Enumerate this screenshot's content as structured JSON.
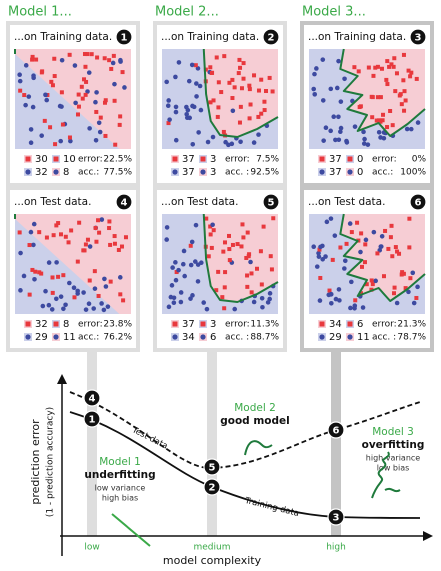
{
  "models": [
    {
      "title": "Model 1...",
      "panels": [
        {
          "title": "...on Training data.",
          "badge": 1,
          "counts": [
            [
              30,
              10
            ],
            [
              32,
              8
            ]
          ],
          "error_label": "error:",
          "error": "22.5%",
          "acc_label": "acc.:",
          "acc": "77.5%"
        },
        {
          "title": "...on Test data.",
          "badge": 4,
          "counts": [
            [
              32,
              8
            ],
            [
              29,
              11
            ]
          ],
          "error_label": "error:",
          "error": "23.8%",
          "acc_label": "acc.:",
          "acc": "76.2%"
        }
      ]
    },
    {
      "title": "Model 2...",
      "panels": [
        {
          "title": "...on Training data.",
          "badge": 2,
          "counts": [
            [
              37,
              3
            ],
            [
              37,
              3
            ]
          ],
          "error_label": "error:",
          "error": "7.5%",
          "acc_label": "acc. :",
          "acc": "92.5%"
        },
        {
          "title": "...on Test data.",
          "badge": 5,
          "counts": [
            [
              37,
              3
            ],
            [
              34,
              6
            ]
          ],
          "error_label": "error:",
          "error": "11.3%",
          "acc_label": "acc. :",
          "acc": "88.7%"
        }
      ]
    },
    {
      "title": "Model 3...",
      "panels": [
        {
          "title": "...on Training data.",
          "badge": 3,
          "counts": [
            [
              37,
              0
            ],
            [
              37,
              0
            ]
          ],
          "error_label": "error:",
          "error": "0%",
          "acc_label": "acc.:",
          "acc": "100%"
        },
        {
          "title": "...on Test data.",
          "badge": 6,
          "counts": [
            [
              34,
              6
            ],
            [
              29,
              11
            ]
          ],
          "error_label": "error:",
          "error": "21.3%",
          "acc_label": "acc. :",
          "acc": "78.7%"
        }
      ]
    }
  ],
  "diagram": {
    "y_label": "prediction error",
    "y_sublabel": "(1 - prediction accuracy)",
    "x_label": "model complexity",
    "ticks": [
      "low",
      "medium",
      "high"
    ],
    "test_label": "Test data",
    "train_label": "Training data",
    "notes": [
      {
        "title": "Model 1",
        "verdict": "underfitting",
        "lines": [
          "low variance",
          "high bias"
        ]
      },
      {
        "title": "Model 2",
        "verdict": "good model",
        "lines": []
      },
      {
        "title": "Model 3",
        "verdict": "overfitting",
        "lines": [
          "high variance",
          "low bias"
        ]
      }
    ]
  }
}
